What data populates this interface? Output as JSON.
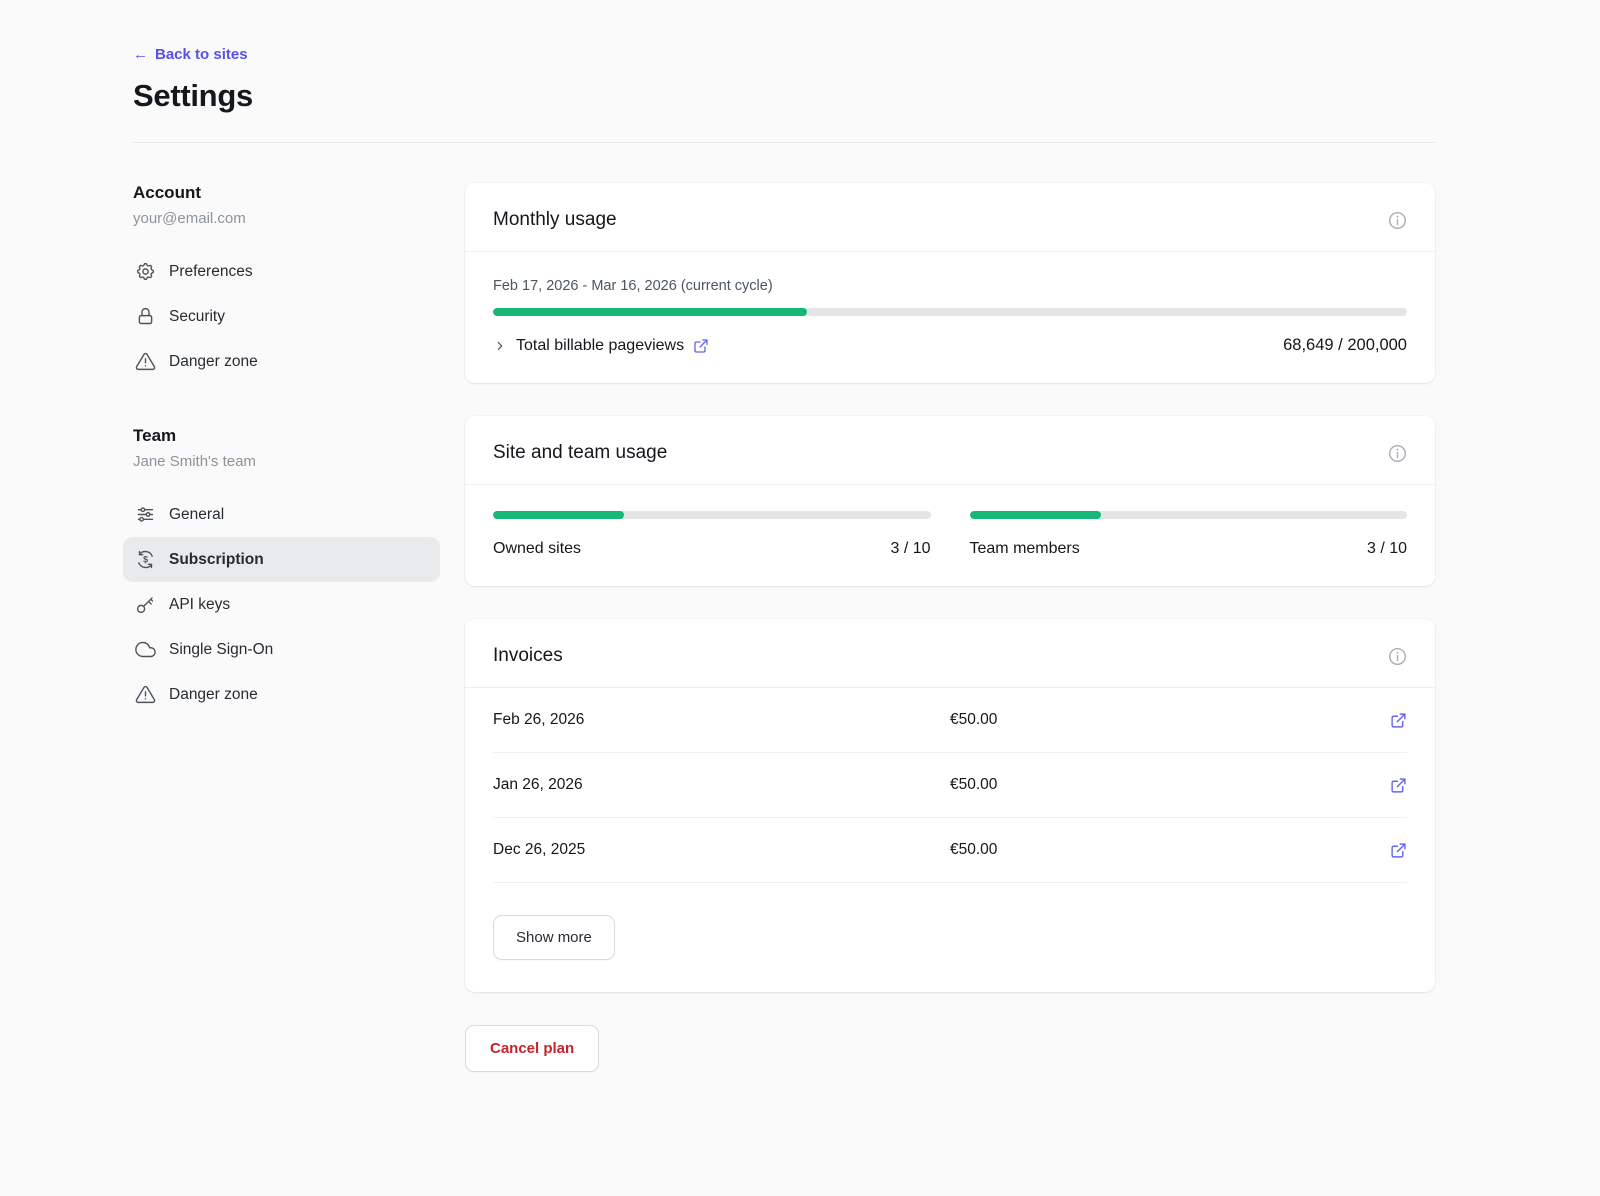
{
  "header": {
    "back_label": "Back to sites",
    "title": "Settings"
  },
  "sidebar": {
    "sections": [
      {
        "title": "Account",
        "subtitle": "your@email.com",
        "items": [
          {
            "label": "Preferences",
            "icon": "gear-icon"
          },
          {
            "label": "Security",
            "icon": "lock-icon"
          },
          {
            "label": "Danger zone",
            "icon": "warning-triangle-icon"
          }
        ]
      },
      {
        "title": "Team",
        "subtitle": "Jane Smith's team",
        "items": [
          {
            "label": "General",
            "icon": "sliders-icon"
          },
          {
            "label": "Subscription",
            "icon": "dollar-refresh-icon",
            "active": true
          },
          {
            "label": "API keys",
            "icon": "key-icon"
          },
          {
            "label": "Single Sign-On",
            "icon": "cloud-icon"
          },
          {
            "label": "Danger zone",
            "icon": "warning-triangle-icon"
          }
        ]
      }
    ]
  },
  "monthly_usage": {
    "title": "Monthly usage",
    "cycle": "Feb 17, 2026 - Mar 16, 2026 (current cycle)",
    "progress_percent": 34.3,
    "row": {
      "label": "Total billable pageviews",
      "value": "68,649 / 200,000"
    }
  },
  "site_team_usage": {
    "title": "Site and team usage",
    "meters": [
      {
        "label": "Owned sites",
        "value": "3 / 10",
        "percent": 30
      },
      {
        "label": "Team members",
        "value": "3 / 10",
        "percent": 30
      }
    ]
  },
  "invoices": {
    "title": "Invoices",
    "rows": [
      {
        "date": "Feb 26, 2026",
        "amount": "€50.00"
      },
      {
        "date": "Jan 26, 2026",
        "amount": "€50.00"
      },
      {
        "date": "Dec 26, 2025",
        "amount": "€50.00"
      }
    ],
    "show_more": "Show more"
  },
  "actions": {
    "cancel_plan": "Cancel plan"
  },
  "colors": {
    "accent_green": "#17b877",
    "link_indigo": "#5850ec",
    "icon_indigo": "#6366f1",
    "danger_red": "#c8232c"
  }
}
